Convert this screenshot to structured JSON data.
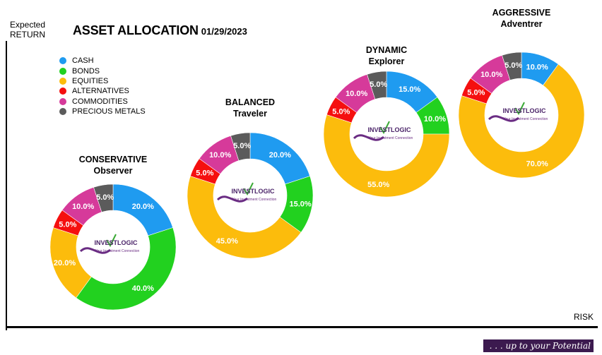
{
  "title": "ASSET ALLOCATION",
  "date": "01/29/2023",
  "ylabel_line1": "Expected",
  "ylabel_line2": "RETURN",
  "xlabel": "RISK",
  "tagline": ". . . up to your Potential",
  "logo": {
    "text": "INVESTLOGIC",
    "subtitle": "Your Investment Connection"
  },
  "legend": [
    {
      "label": "CASH",
      "color": "#1f9bf0"
    },
    {
      "label": "BONDS",
      "color": "#22d11f"
    },
    {
      "label": "EQUITIES",
      "color": "#fcbc0c"
    },
    {
      "label": "ALTERNATIVES",
      "color": "#f50f0f"
    },
    {
      "label": "COMMODITIES",
      "color": "#d63a9a"
    },
    {
      "label": "PRECIOUS METALS",
      "color": "#5b5b5b"
    }
  ],
  "chart_data": [
    {
      "type": "pie",
      "title": "CONSERVATIVE",
      "subtitle": "Observer",
      "categories": [
        "CASH",
        "BONDS",
        "EQUITIES",
        "ALTERNATIVES",
        "COMMODITIES",
        "PRECIOUS METALS"
      ],
      "values": [
        20,
        40,
        20,
        5,
        10,
        5
      ],
      "labels": [
        "20.0%",
        "40.0%",
        "20.0%",
        "5.0%",
        "10.0%",
        "5.0%"
      ]
    },
    {
      "type": "pie",
      "title": "BALANCED",
      "subtitle": "Traveler",
      "categories": [
        "CASH",
        "BONDS",
        "EQUITIES",
        "ALTERNATIVES",
        "COMMODITIES",
        "PRECIOUS METALS"
      ],
      "values": [
        20,
        15,
        45,
        5,
        10,
        5
      ],
      "labels": [
        "20.0%",
        "15.0%",
        "45.0%",
        "5.0%",
        "10.0%",
        "5.0%"
      ]
    },
    {
      "type": "pie",
      "title": "DYNAMIC",
      "subtitle": "Explorer",
      "categories": [
        "CASH",
        "BONDS",
        "EQUITIES",
        "ALTERNATIVES",
        "COMMODITIES",
        "PRECIOUS METALS"
      ],
      "values": [
        15,
        10,
        55,
        5,
        10,
        5
      ],
      "labels": [
        "15.0%",
        "10.0%",
        "55.0%",
        "5.0%",
        "10.0%",
        "5.0%"
      ]
    },
    {
      "type": "pie",
      "title": "AGGRESSIVE",
      "subtitle": "Adventrer",
      "categories": [
        "CASH",
        "BONDS",
        "EQUITIES",
        "ALTERNATIVES",
        "COMMODITIES",
        "PRECIOUS METALS"
      ],
      "values": [
        10,
        0,
        70,
        5,
        10,
        5
      ],
      "labels": [
        "10.0%",
        "",
        "70.0%",
        "5.0%",
        "10.0%",
        "5.0%"
      ]
    }
  ]
}
